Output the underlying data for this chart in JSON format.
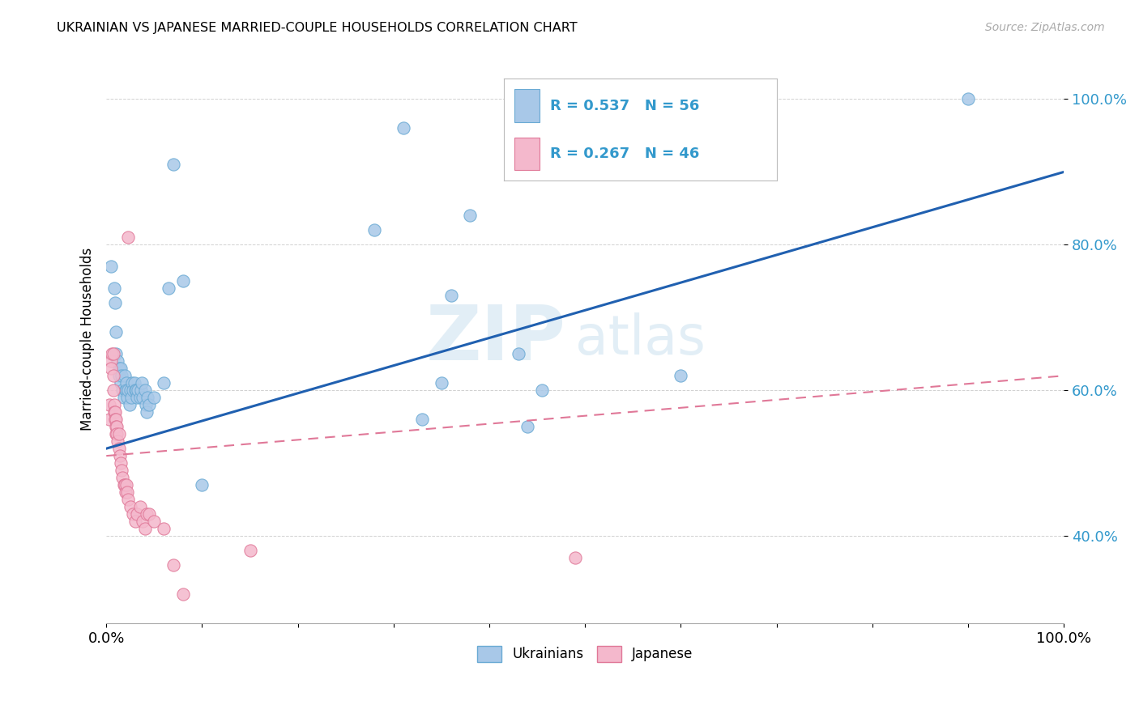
{
  "title": "UKRAINIAN VS JAPANESE MARRIED-COUPLE HOUSEHOLDS CORRELATION CHART",
  "source": "Source: ZipAtlas.com",
  "ylabel": "Married-couple Households",
  "watermark": "ZIPatlas",
  "legend_labels": [
    "Ukrainians",
    "Japanese"
  ],
  "blue_color": "#a8c8e8",
  "blue_edge_color": "#6aaad4",
  "pink_color": "#f4b8cc",
  "pink_edge_color": "#e07898",
  "blue_line_color": "#2060b0",
  "pink_line_color": "#e07898",
  "blue_scatter": [
    [
      0.005,
      0.77
    ],
    [
      0.008,
      0.74
    ],
    [
      0.009,
      0.72
    ],
    [
      0.01,
      0.68
    ],
    [
      0.01,
      0.65
    ],
    [
      0.012,
      0.64
    ],
    [
      0.013,
      0.63
    ],
    [
      0.013,
      0.62
    ],
    [
      0.015,
      0.63
    ],
    [
      0.015,
      0.61
    ],
    [
      0.016,
      0.62
    ],
    [
      0.017,
      0.6
    ],
    [
      0.018,
      0.59
    ],
    [
      0.019,
      0.62
    ],
    [
      0.02,
      0.6
    ],
    [
      0.021,
      0.61
    ],
    [
      0.021,
      0.6
    ],
    [
      0.022,
      0.59
    ],
    [
      0.023,
      0.6
    ],
    [
      0.024,
      0.58
    ],
    [
      0.025,
      0.6
    ],
    [
      0.026,
      0.59
    ],
    [
      0.027,
      0.61
    ],
    [
      0.028,
      0.6
    ],
    [
      0.029,
      0.61
    ],
    [
      0.03,
      0.6
    ],
    [
      0.031,
      0.6
    ],
    [
      0.032,
      0.59
    ],
    [
      0.033,
      0.6
    ],
    [
      0.035,
      0.59
    ],
    [
      0.036,
      0.6
    ],
    [
      0.037,
      0.61
    ],
    [
      0.038,
      0.59
    ],
    [
      0.04,
      0.6
    ],
    [
      0.041,
      0.58
    ],
    [
      0.042,
      0.57
    ],
    [
      0.043,
      0.59
    ],
    [
      0.045,
      0.58
    ],
    [
      0.05,
      0.59
    ],
    [
      0.06,
      0.61
    ],
    [
      0.065,
      0.74
    ],
    [
      0.07,
      0.91
    ],
    [
      0.08,
      0.75
    ],
    [
      0.1,
      0.47
    ],
    [
      0.28,
      0.82
    ],
    [
      0.31,
      0.96
    ],
    [
      0.33,
      0.56
    ],
    [
      0.35,
      0.61
    ],
    [
      0.36,
      0.73
    ],
    [
      0.38,
      0.84
    ],
    [
      0.43,
      0.65
    ],
    [
      0.44,
      0.55
    ],
    [
      0.455,
      0.6
    ],
    [
      0.6,
      0.62
    ],
    [
      0.9,
      1.0
    ]
  ],
  "pink_scatter": [
    [
      0.003,
      0.58
    ],
    [
      0.003,
      0.56
    ],
    [
      0.005,
      0.64
    ],
    [
      0.005,
      0.63
    ],
    [
      0.006,
      0.65
    ],
    [
      0.007,
      0.65
    ],
    [
      0.007,
      0.62
    ],
    [
      0.007,
      0.6
    ],
    [
      0.008,
      0.58
    ],
    [
      0.008,
      0.57
    ],
    [
      0.009,
      0.57
    ],
    [
      0.009,
      0.56
    ],
    [
      0.01,
      0.56
    ],
    [
      0.01,
      0.55
    ],
    [
      0.01,
      0.54
    ],
    [
      0.011,
      0.55
    ],
    [
      0.011,
      0.54
    ],
    [
      0.012,
      0.53
    ],
    [
      0.013,
      0.54
    ],
    [
      0.013,
      0.52
    ],
    [
      0.014,
      0.51
    ],
    [
      0.015,
      0.5
    ],
    [
      0.016,
      0.49
    ],
    [
      0.017,
      0.48
    ],
    [
      0.018,
      0.47
    ],
    [
      0.019,
      0.47
    ],
    [
      0.02,
      0.46
    ],
    [
      0.021,
      0.47
    ],
    [
      0.022,
      0.46
    ],
    [
      0.023,
      0.45
    ],
    [
      0.025,
      0.44
    ],
    [
      0.028,
      0.43
    ],
    [
      0.03,
      0.42
    ],
    [
      0.032,
      0.43
    ],
    [
      0.035,
      0.44
    ],
    [
      0.038,
      0.42
    ],
    [
      0.04,
      0.41
    ],
    [
      0.042,
      0.43
    ],
    [
      0.045,
      0.43
    ],
    [
      0.05,
      0.42
    ],
    [
      0.06,
      0.41
    ],
    [
      0.07,
      0.36
    ],
    [
      0.08,
      0.32
    ],
    [
      0.15,
      0.38
    ],
    [
      0.49,
      0.37
    ],
    [
      0.023,
      0.81
    ]
  ],
  "xlim": [
    0.0,
    1.0
  ],
  "ylim": [
    0.28,
    1.06
  ],
  "yticks": [
    0.4,
    0.6,
    0.8,
    1.0
  ],
  "ytick_labels": [
    "40.0%",
    "60.0%",
    "80.0%",
    "100.0%"
  ],
  "xtick_positions": [
    0.0,
    0.1,
    0.2,
    0.3,
    0.4,
    0.5,
    0.6,
    0.7,
    0.8,
    0.9,
    1.0
  ],
  "blue_line_x": [
    0.0,
    1.0
  ],
  "blue_line_y": [
    0.52,
    0.9
  ],
  "pink_line_x": [
    0.0,
    1.0
  ],
  "pink_line_y": [
    0.51,
    0.62
  ]
}
